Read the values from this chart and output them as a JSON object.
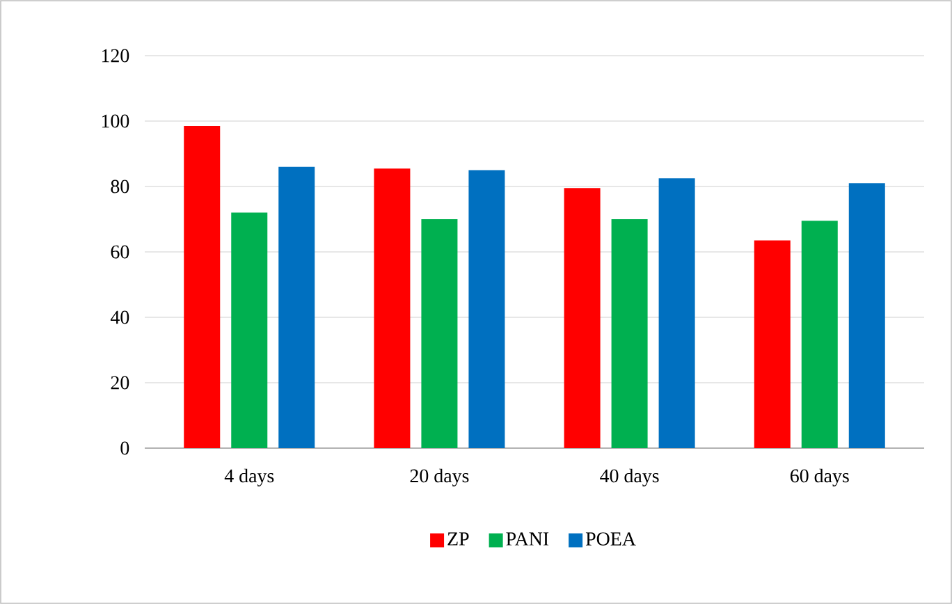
{
  "chart_data": {
    "type": "bar",
    "categories": [
      "4 days",
      "20 days",
      "40 days",
      "60 days"
    ],
    "series": [
      {
        "name": "ZP",
        "color": "#ff0000",
        "values": [
          98.5,
          85.5,
          79.5,
          63.5
        ]
      },
      {
        "name": "PANI",
        "color": "#00b050",
        "values": [
          72,
          70,
          70,
          69.5
        ]
      },
      {
        "name": "POEA",
        "color": "#0070c0",
        "values": [
          86,
          85,
          82.5,
          81
        ]
      }
    ],
    "ylim": [
      0,
      120
    ],
    "yticks": [
      0,
      20,
      40,
      60,
      80,
      100,
      120
    ],
    "grid": "y",
    "legend": "bottom"
  }
}
